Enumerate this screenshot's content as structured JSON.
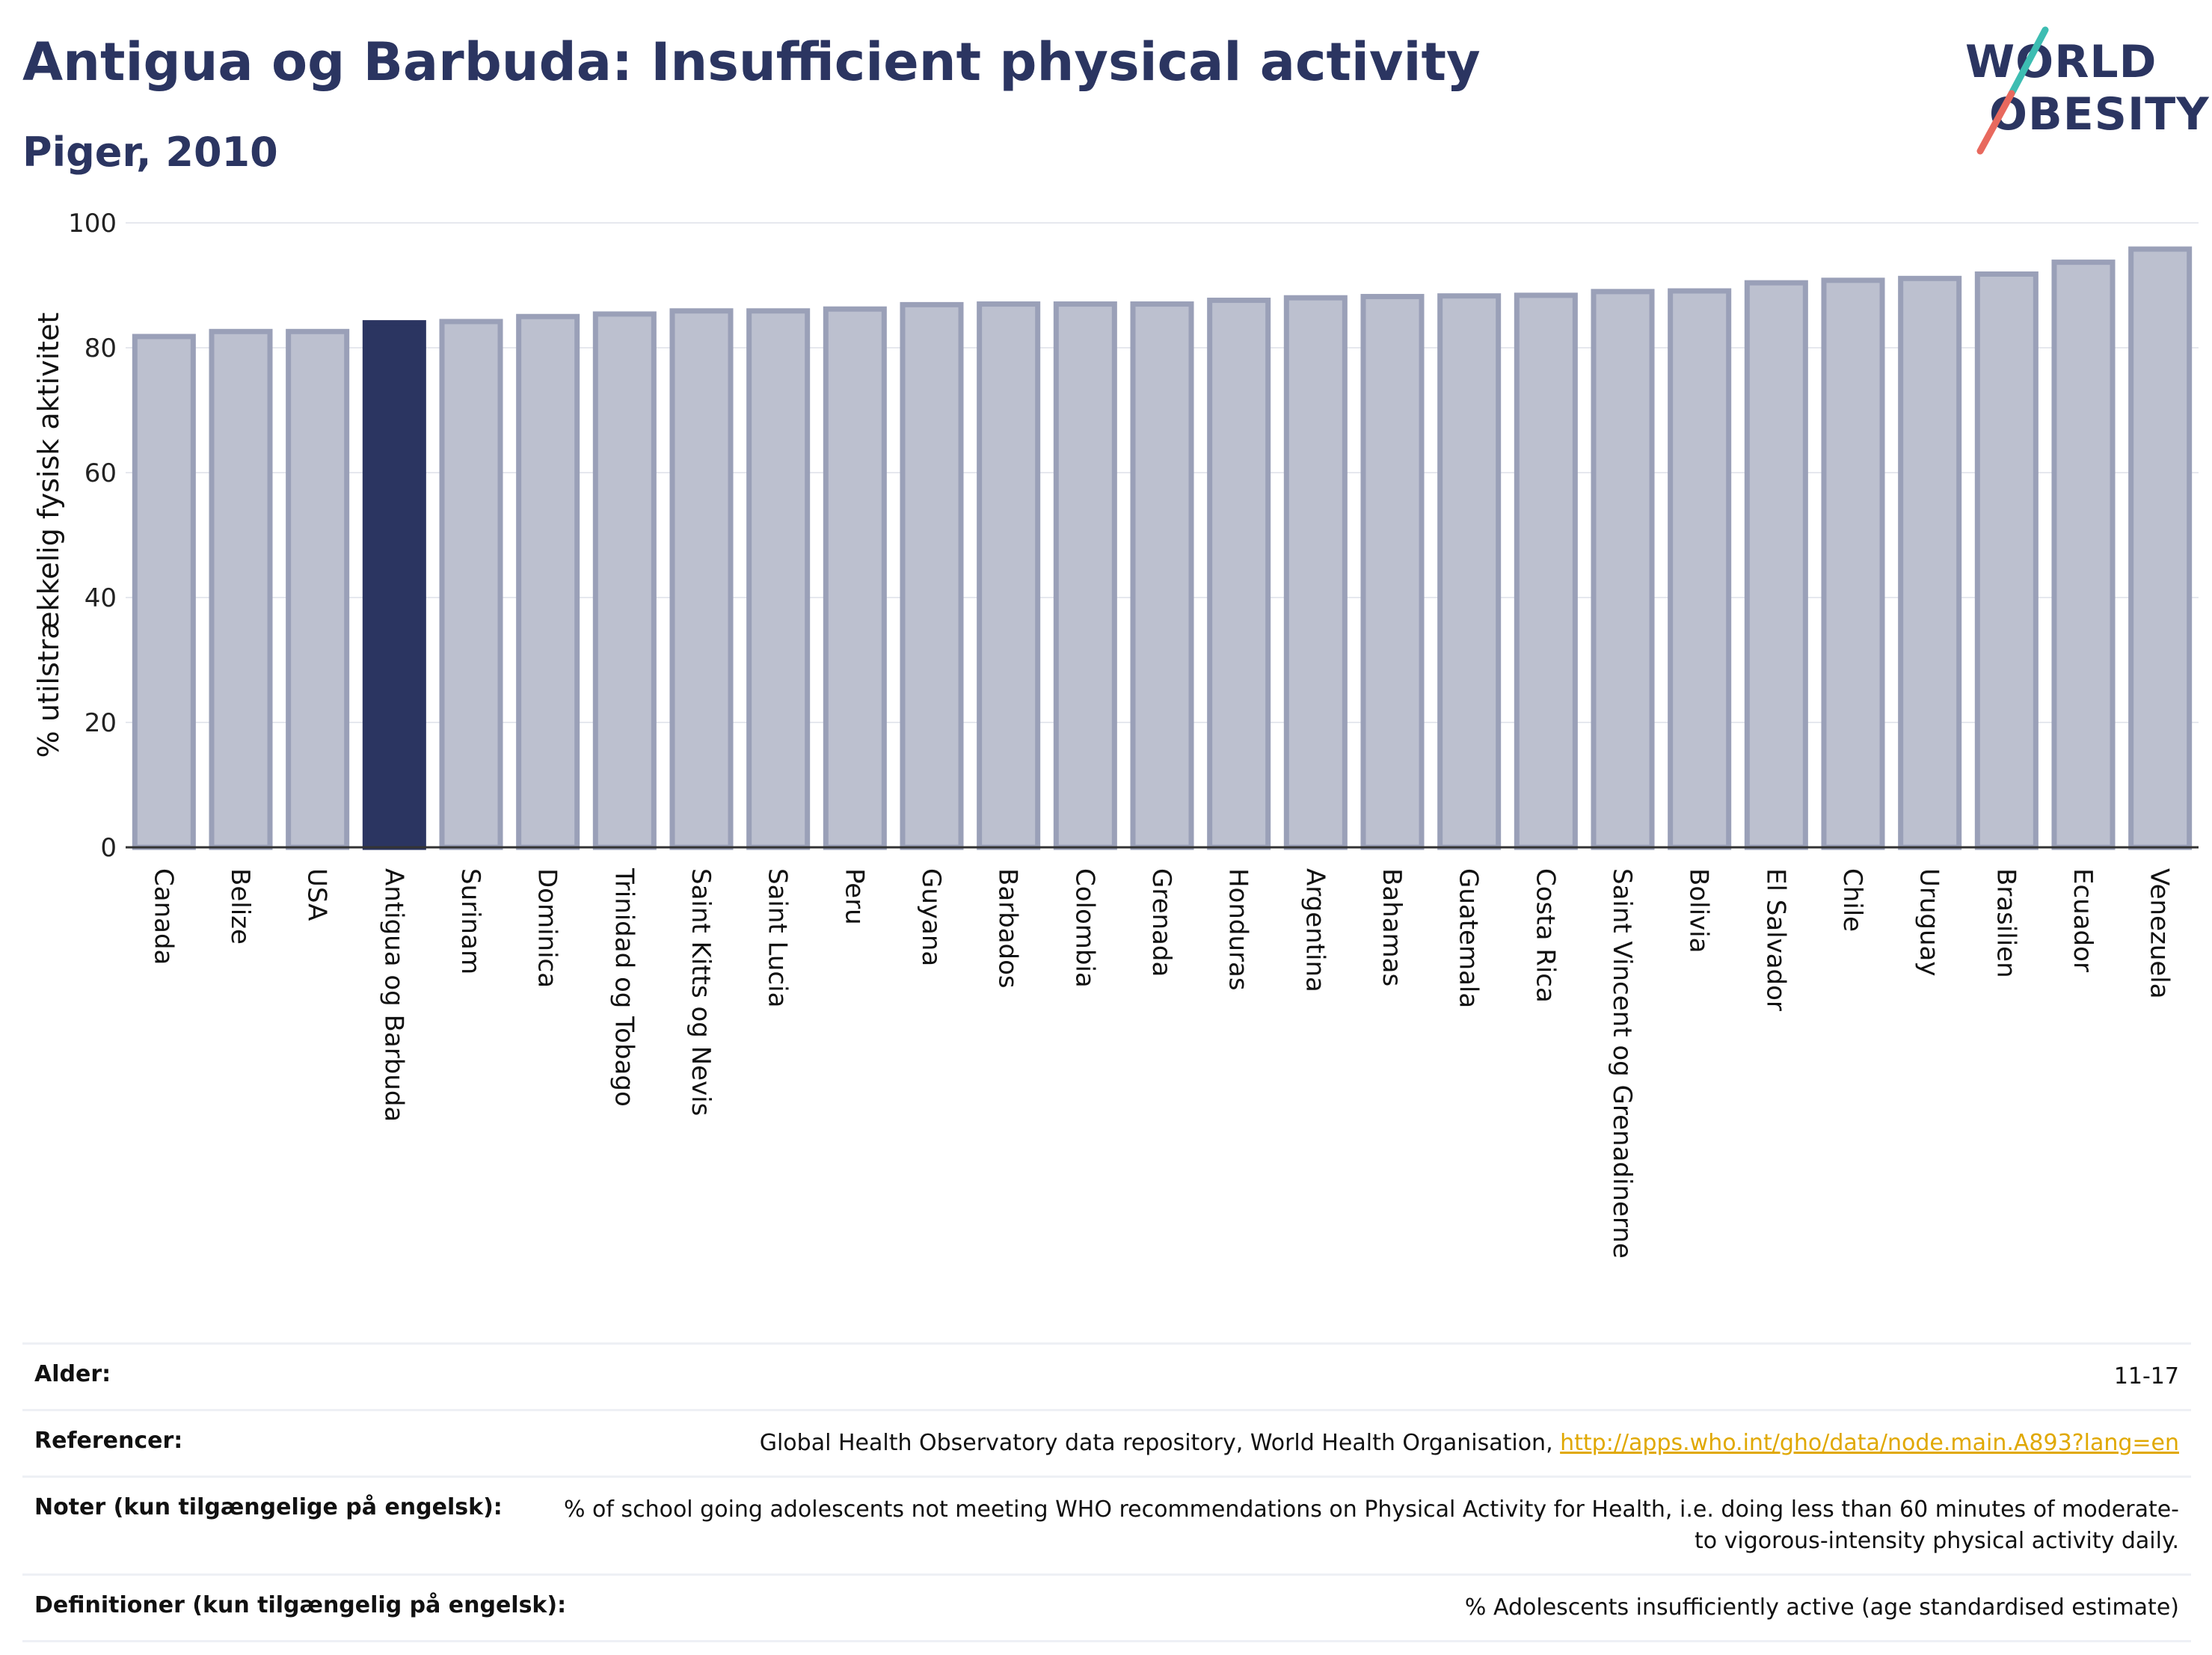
{
  "header": {
    "title": "Antigua og Barbuda: Insufficient physical activity",
    "subtitle": "Piger, 2010"
  },
  "logo": {
    "line1": "WORLD",
    "line2": "OBESITY",
    "colors": {
      "text": "#2b3561",
      "slash_top": "#3dbdb2",
      "slash_bottom": "#e8695e"
    }
  },
  "colors": {
    "bar_default": "#bcc0cf",
    "bar_default_border": "#9aa0b8",
    "bar_highlight": "#2b3561",
    "grid": "#e6e8ee",
    "axis": "#333333"
  },
  "chart_data": {
    "type": "bar",
    "ylabel": "% utilstrækkelig fysisk aktivitet",
    "ylim": [
      0,
      100
    ],
    "yticks": [
      0,
      20,
      40,
      60,
      80,
      100
    ],
    "grid": true,
    "highlight": "Antigua og Barbuda",
    "categories": [
      "Canada",
      "Belize",
      "USA",
      "Antigua og Barbuda",
      "Surinam",
      "Dominica",
      "Trinidad og Tobago",
      "Saint Kitts og Nevis",
      "Saint Lucia",
      "Peru",
      "Guyana",
      "Barbados",
      "Colombia",
      "Grenada",
      "Honduras",
      "Argentina",
      "Bahamas",
      "Guatemala",
      "Costa Rica",
      "Saint Vincent og Grenadinerne",
      "Bolivia",
      "El Salvador",
      "Chile",
      "Uruguay",
      "Brasilien",
      "Ecuador",
      "Venezuela"
    ],
    "values": [
      81.8,
      82.6,
      82.6,
      84.0,
      84.2,
      85.0,
      85.4,
      85.9,
      85.9,
      86.2,
      86.9,
      87.0,
      87.0,
      87.0,
      87.6,
      88.0,
      88.2,
      88.3,
      88.4,
      89.0,
      89.1,
      90.4,
      90.8,
      91.1,
      91.8,
      93.7,
      95.8
    ]
  },
  "table": {
    "rows": [
      {
        "label": "Alder:",
        "value": "11-17"
      },
      {
        "label": "Referencer:",
        "value": "Global Health Observatory data repository, World Health Organisation, ",
        "link": "http://apps.who.int/gho/data/node.main.A893?lang=en"
      },
      {
        "label": "Noter (kun tilgængelige på engelsk):",
        "value": "% of school going adolescents not meeting WHO recommendations on Physical Activity for Health, i.e. doing less than 60 minutes of moderate- to vigorous-intensity physical activity daily."
      },
      {
        "label": "Definitioner (kun tilgængelig på engelsk):",
        "value": "% Adolescents insufficiently active (age standardised estimate)"
      }
    ]
  }
}
